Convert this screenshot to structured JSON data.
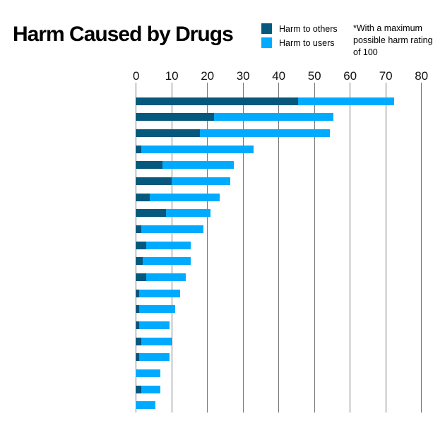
{
  "chart_data": {
    "type": "bar",
    "orientation": "horizontal",
    "stacked": true,
    "title": "Harm Caused by Drugs",
    "note": "*With a maximum possible harm rating of 100",
    "xlabel": "",
    "ylabel": "",
    "xlim": [
      0,
      80
    ],
    "x_ticks": [
      0,
      10,
      20,
      30,
      40,
      50,
      60,
      70,
      80
    ],
    "grid": "vertical-gridlines",
    "legend_position": "top",
    "category_labels_shown": false,
    "series": [
      {
        "name": "Harm to others",
        "color": "#07587d",
        "values": [
          45.5,
          22,
          18,
          1.5,
          7.5,
          10,
          4,
          8.5,
          1.5,
          3,
          2,
          3,
          1,
          1,
          1,
          1.5,
          1,
          0,
          1.5,
          0
        ]
      },
      {
        "name": "Harm to users",
        "color": "#00abff",
        "values": [
          27,
          33.5,
          36.5,
          31.5,
          20,
          16.5,
          19.5,
          12.5,
          17.5,
          12.5,
          13.5,
          11,
          11.5,
          10,
          8.5,
          8.5,
          8.5,
          7,
          5.5,
          5.5
        ]
      }
    ],
    "stacked_totals": [
      72.5,
      55.5,
      54.5,
      33,
      27.5,
      26.5,
      23.5,
      21,
      19,
      15.5,
      15.5,
      14,
      12.5,
      11,
      9.5,
      10,
      9.5,
      7,
      7,
      5.5
    ]
  }
}
